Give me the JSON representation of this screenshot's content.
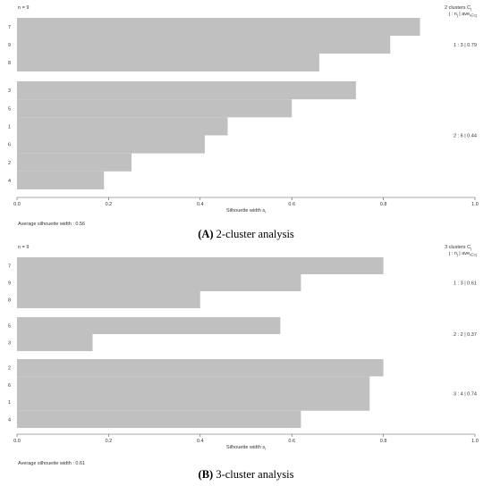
{
  "chart_data": [
    {
      "type": "bar",
      "n_label": "n = 9",
      "legend_title": "2  clusters  C",
      "legend_title_sub": "j",
      "legend_header": "j :  n",
      "legend_header_sub": "j",
      "legend_header_tail": "| ave",
      "legend_header_tail_sub": "i∈Cj",
      "xlabel": "Silhouette width s",
      "xlabel_sub": "i",
      "xlim": [
        0,
        1
      ],
      "x_ticks": [
        "0.0",
        "0.2",
        "0.4",
        "0.6",
        "0.8",
        "1.0"
      ],
      "footer": "Average silhouette width :  0.56",
      "caption_letter": "(A)",
      "caption_text": " 2-cluster analysis",
      "clusters": [
        {
          "summary": "1 :  3  |  0.79",
          "items": [
            {
              "label": "7",
              "value": 0.88
            },
            {
              "label": "9",
              "value": 0.815
            },
            {
              "label": "8",
              "value": 0.66
            }
          ]
        },
        {
          "summary": "2 :  6  |  0.44",
          "items": [
            {
              "label": "3",
              "value": 0.74
            },
            {
              "label": "5",
              "value": 0.6
            },
            {
              "label": "1",
              "value": 0.46
            },
            {
              "label": "6",
              "value": 0.41
            },
            {
              "label": "2",
              "value": 0.25
            },
            {
              "label": "4",
              "value": 0.19
            }
          ]
        }
      ]
    },
    {
      "type": "bar",
      "n_label": "n = 9",
      "legend_title": "3  clusters  C",
      "legend_title_sub": "j",
      "legend_header": "j :  n",
      "legend_header_sub": "j",
      "legend_header_tail": "| ave",
      "legend_header_tail_sub": "i∈Cj",
      "xlabel": "Silhouette width s",
      "xlabel_sub": "i",
      "xlim": [
        0,
        1
      ],
      "x_ticks": [
        "0.0",
        "0.2",
        "0.4",
        "0.6",
        "0.8",
        "1.0"
      ],
      "footer": "Average silhouette width :  0.61",
      "caption_letter": "(B)",
      "caption_text": " 3-cluster analysis",
      "clusters": [
        {
          "summary": "1 :  3  |  0.61",
          "items": [
            {
              "label": "7",
              "value": 0.8
            },
            {
              "label": "9",
              "value": 0.62
            },
            {
              "label": "8",
              "value": 0.4
            }
          ]
        },
        {
          "summary": "2 :  2  |  0.37",
          "items": [
            {
              "label": "5",
              "value": 0.575
            },
            {
              "label": "3",
              "value": 0.165
            }
          ]
        },
        {
          "summary": "3 :  4  |  0.74",
          "items": [
            {
              "label": "2",
              "value": 0.8
            },
            {
              "label": "6",
              "value": 0.77
            },
            {
              "label": "1",
              "value": 0.77
            },
            {
              "label": "4",
              "value": 0.62
            }
          ]
        }
      ]
    }
  ]
}
